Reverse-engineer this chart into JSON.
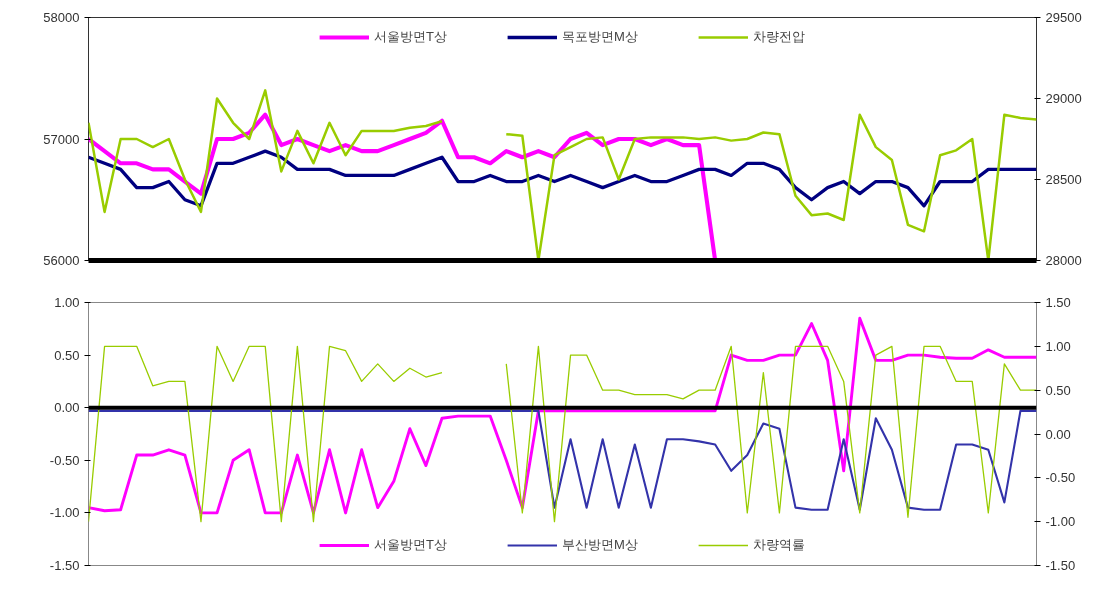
{
  "chart_data": [
    {
      "type": "line",
      "categories": [
        null,
        null,
        null,
        null,
        null,
        null,
        null,
        null,
        null,
        null,
        null,
        null,
        null,
        null,
        null,
        null,
        null,
        null,
        null,
        null,
        null,
        null,
        null,
        null,
        null,
        null,
        null,
        null,
        null,
        null,
        null,
        null,
        null,
        null,
        null,
        null,
        null,
        null,
        null,
        null,
        null,
        null,
        null,
        null,
        null,
        null,
        null,
        null,
        null,
        null,
        null,
        null,
        null,
        null,
        null,
        null,
        null,
        null,
        null,
        null
      ],
      "ylim": [
        56000,
        58000
      ],
      "yticks": [
        56000,
        57000,
        58000
      ],
      "y2lim": [
        28000,
        29500
      ],
      "y2ticks": [
        28000,
        28500,
        29000,
        29500
      ],
      "legend": "top",
      "series": [
        {
          "name": "서울방면T상",
          "color": "#ff00ff",
          "values": [
            57000,
            56900,
            56800,
            56800,
            56750,
            56750,
            56650,
            56550,
            57000,
            57000,
            57050,
            57200,
            56950,
            57000,
            56950,
            56900,
            56950,
            56900,
            56900,
            56950,
            57000,
            57050,
            57150,
            56850,
            56850,
            56800,
            56900,
            56850,
            56900,
            56850,
            57000,
            57050,
            56950,
            57000,
            57000,
            56950,
            57000,
            56950,
            56950,
            56000,
            null,
            null,
            null,
            null,
            null,
            null,
            null,
            null,
            null,
            null,
            null,
            null,
            null,
            null,
            null,
            null,
            null,
            null,
            null,
            null
          ]
        },
        {
          "name": "목포방면M상",
          "color": "#000080",
          "values": [
            56850,
            56800,
            56750,
            56600,
            56600,
            56650,
            56500,
            56450,
            56800,
            56800,
            56850,
            56900,
            56850,
            56750,
            56750,
            56750,
            56700,
            56700,
            56700,
            56700,
            56750,
            56800,
            56850,
            56650,
            56650,
            56700,
            56650,
            56650,
            56700,
            56650,
            56700,
            56650,
            56600,
            56650,
            56700,
            56650,
            56650,
            56700,
            56750,
            56750,
            56700,
            56800,
            56800,
            56750,
            56600,
            56500,
            56600,
            56650,
            56550,
            56650,
            56650,
            56600,
            56450,
            56650,
            56650,
            56650,
            56750,
            56750,
            56750,
            56750
          ]
        },
        {
          "name": "차량전압",
          "color": "#99cc00",
          "axis": "y2",
          "values": [
            28850,
            28300,
            28750,
            28750,
            28700,
            28750,
            28500,
            28300,
            29000,
            28850,
            28750,
            29050,
            28550,
            28800,
            28600,
            28850,
            28650,
            28800,
            28800,
            28800,
            28820,
            28830,
            28860,
            null,
            null,
            null,
            28780,
            28770,
            28000,
            28650,
            28700,
            28750,
            28760,
            28500,
            28750,
            28760,
            28760,
            28760,
            28750,
            28760,
            28740,
            28750,
            28790,
            28780,
            28400,
            28280,
            28290,
            28250,
            28900,
            28700,
            28620,
            28220,
            28180,
            28650,
            28680,
            28750,
            28000,
            28900,
            28880,
            28870
          ]
        }
      ]
    },
    {
      "type": "line",
      "categories": [
        null,
        null,
        null,
        null,
        null,
        null,
        null,
        null,
        null,
        null,
        null,
        null,
        null,
        null,
        null,
        null,
        null,
        null,
        null,
        null,
        null,
        null,
        null,
        null,
        null,
        null,
        null,
        null,
        null,
        null,
        null,
        null,
        null,
        null,
        null,
        null,
        null,
        null,
        null,
        null,
        null,
        null,
        null,
        null,
        null,
        null,
        null,
        null,
        null,
        null,
        null,
        null,
        null,
        null,
        null,
        null,
        null,
        null,
        null,
        null
      ],
      "ylim": [
        -1.5,
        1.0
      ],
      "yticks": [
        {
          "value": -1.5,
          "label": "-1.50"
        },
        {
          "value": -1.0,
          "label": "-1.00"
        },
        {
          "value": -0.5,
          "label": "-0.50"
        },
        {
          "value": 0,
          "label": "0.00"
        },
        {
          "value": 0.5,
          "label": "0.50"
        },
        {
          "value": 1.0,
          "label": "1.00"
        }
      ],
      "y2lim": [
        -1.5,
        1.5
      ],
      "y2ticks": [
        {
          "value": -1.5,
          "label": "-1.50"
        },
        {
          "value": -1.0,
          "label": "-1.00"
        },
        {
          "value": -0.5,
          "label": "-0.50"
        },
        {
          "value": 0,
          "label": "0.00"
        },
        {
          "value": 0.5,
          "label": "0.50"
        },
        {
          "value": 1.0,
          "label": "1.00"
        },
        {
          "value": 1.5,
          "label": "1.50"
        }
      ],
      "legend": "bottom",
      "ref_lines": [
        {
          "axis": "y",
          "value": 0,
          "color": "#000000"
        }
      ],
      "series": [
        {
          "name": "서울방면T상",
          "color": "#ff00ff",
          "values": [
            -0.95,
            -0.98,
            -0.97,
            -0.45,
            -0.45,
            -0.4,
            -0.45,
            -1.0,
            -1.0,
            -0.5,
            -0.4,
            -1.0,
            -1.0,
            -0.45,
            -1.0,
            -0.4,
            -1.0,
            -0.4,
            -0.95,
            -0.7,
            -0.2,
            -0.55,
            -0.1,
            -0.08,
            -0.08,
            -0.08,
            -0.5,
            -0.95,
            -0.03,
            -0.03,
            -0.03,
            -0.03,
            -0.03,
            -0.03,
            -0.03,
            -0.03,
            -0.03,
            -0.03,
            -0.03,
            -0.03,
            0.5,
            0.45,
            0.45,
            0.5,
            0.5,
            0.8,
            0.45,
            -0.6,
            0.85,
            0.45,
            0.45,
            0.5,
            0.5,
            0.48,
            0.47,
            0.47,
            0.55,
            0.48,
            0.48,
            0.48
          ]
        },
        {
          "name": "부산방면M상",
          "color": "#3333aa",
          "values": [
            -0.03,
            -0.03,
            -0.03,
            -0.03,
            -0.03,
            -0.03,
            -0.03,
            -0.03,
            -0.03,
            -0.03,
            -0.03,
            -0.03,
            -0.03,
            -0.03,
            -0.03,
            -0.03,
            -0.03,
            -0.03,
            -0.03,
            -0.03,
            -0.03,
            -0.03,
            -0.03,
            -0.03,
            -0.03,
            -0.03,
            -0.03,
            -0.03,
            -0.03,
            -0.95,
            -0.3,
            -0.95,
            -0.3,
            -0.95,
            -0.35,
            -0.95,
            -0.3,
            -0.3,
            -0.32,
            -0.35,
            -0.6,
            -0.45,
            -0.15,
            -0.2,
            -0.95,
            -0.97,
            -0.97,
            -0.3,
            -0.97,
            -0.1,
            -0.4,
            -0.95,
            -0.97,
            -0.97,
            -0.35,
            -0.35,
            -0.4,
            -0.9,
            -0.03,
            -0.03
          ]
        },
        {
          "name": "차량역률",
          "color": "#99cc00",
          "axis": "y2",
          "values": [
            -1.0,
            1.0,
            1.0,
            1.0,
            0.55,
            0.6,
            0.6,
            -1.0,
            1.0,
            0.6,
            1.0,
            1.0,
            -1.0,
            1.0,
            -1.0,
            1.0,
            0.95,
            0.6,
            0.8,
            0.6,
            0.75,
            0.65,
            0.7,
            null,
            null,
            null,
            0.8,
            -0.9,
            1.0,
            -1.0,
            0.9,
            0.9,
            0.5,
            0.5,
            0.45,
            0.45,
            0.45,
            0.4,
            0.5,
            0.5,
            1.0,
            -0.9,
            0.7,
            -0.9,
            1.0,
            1.0,
            1.0,
            0.6,
            -0.9,
            0.9,
            1.0,
            -0.95,
            1.0,
            1.0,
            0.6,
            0.6,
            -0.9,
            0.8,
            0.5,
            0.5
          ]
        }
      ]
    }
  ]
}
